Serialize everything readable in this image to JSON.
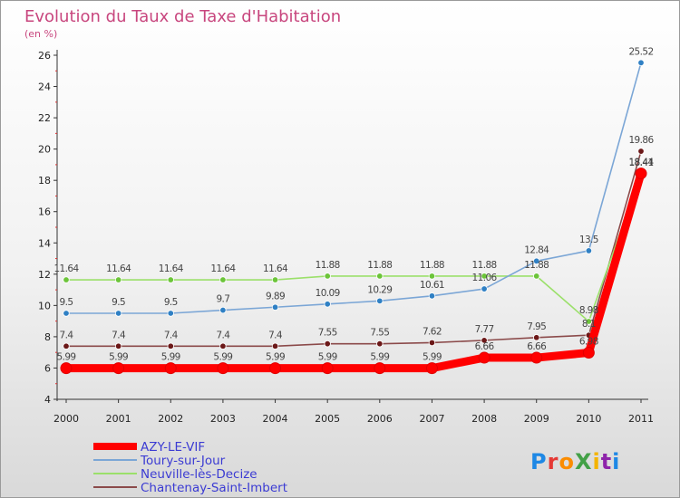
{
  "chart_data": {
    "type": "line",
    "title": "Evolution du Taux de Taxe d'Habitation",
    "subtitle": "(en %)",
    "xlabel": "",
    "ylabel": "",
    "categories": [
      "2000",
      "2001",
      "2002",
      "2003",
      "2004",
      "2005",
      "2006",
      "2007",
      "2008",
      "2009",
      "2010",
      "2011"
    ],
    "ylim": [
      4,
      26
    ],
    "yticks": [
      4,
      6,
      8,
      10,
      12,
      14,
      16,
      18,
      20,
      22,
      24,
      26
    ],
    "grid": false,
    "legend_position": "bottom-left",
    "series": [
      {
        "name": "AZY-LE-VIF",
        "color": "#ff0000",
        "values": [
          5.99,
          5.99,
          5.99,
          5.99,
          5.99,
          5.99,
          5.99,
          5.99,
          6.66,
          6.66,
          6.98,
          18.44
        ],
        "labels": [
          "5.99",
          "5.99",
          "5.99",
          "5.99",
          "5.99",
          "5.99",
          "5.99",
          "5.99",
          "6.66",
          "6.66",
          "6.98",
          "18.44"
        ]
      },
      {
        "name": "Toury-sur-Jour",
        "color": "#7ba6d6",
        "marker": "#2f80c4",
        "values": [
          9.5,
          9.5,
          9.5,
          9.7,
          9.89,
          10.09,
          10.29,
          10.61,
          11.06,
          12.84,
          13.5,
          25.52
        ],
        "labels": [
          "9.5",
          "9.5",
          "9.5",
          "9.7",
          "9.89",
          "10.09",
          "10.29",
          "10.61",
          "11.06",
          "12.84",
          "13.5",
          "25.52"
        ]
      },
      {
        "name": "Neuville-lès-Decize",
        "color": "#9be06a",
        "marker": "#6cc43a",
        "values": [
          11.64,
          11.64,
          11.64,
          11.64,
          11.64,
          11.88,
          11.88,
          11.88,
          11.88,
          11.88,
          8.98,
          18.41
        ],
        "labels": [
          "11.64",
          "11.64",
          "11.64",
          "11.64",
          "11.64",
          "11.88",
          "11.88",
          "11.88",
          "11.88",
          "11.88",
          "8.98",
          "18.41"
        ]
      },
      {
        "name": "Chantenay-Saint-Imbert",
        "color": "#8b4a4a",
        "marker": "#6b1818",
        "values": [
          7.4,
          7.4,
          7.4,
          7.4,
          7.4,
          7.55,
          7.55,
          7.62,
          7.77,
          7.95,
          8.1,
          19.86
        ],
        "labels": [
          "7.4",
          "7.4",
          "7.4",
          "7.4",
          "7.4",
          "7.55",
          "7.55",
          "7.62",
          "7.77",
          "7.95",
          "8.1",
          "19.86"
        ]
      }
    ]
  },
  "branding": {
    "logo_text": "ProXiti",
    "logo_colors": [
      "#1e88e5",
      "#e53935",
      "#fb8c00",
      "#43a047",
      "#f4b400",
      "#8e24aa",
      "#1e88e5"
    ]
  }
}
